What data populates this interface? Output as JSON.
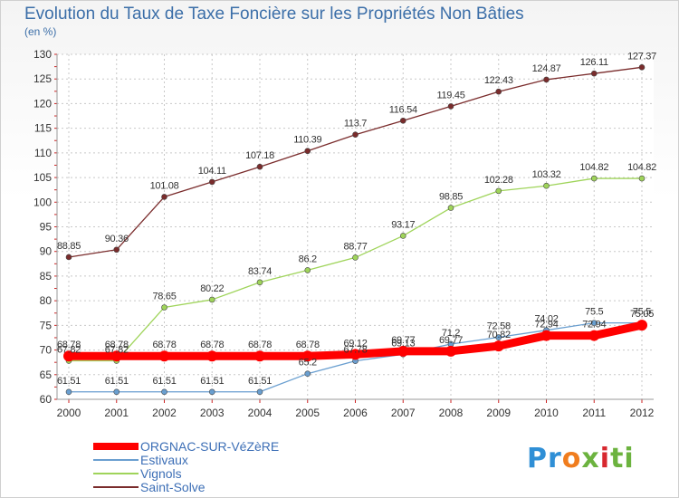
{
  "header": {
    "title": "Evolution du Taux de Taxe Foncière sur les Propriétés Non Bâties",
    "unit": "(en %)"
  },
  "chart_data": {
    "type": "line",
    "title": "Evolution du Taux de Taxe Foncière sur les Propriétés Non Bâties",
    "ylabel": "(en %)",
    "xlabel": "",
    "ylim": [
      60,
      130
    ],
    "yticks": [
      60,
      65,
      70,
      75,
      80,
      85,
      90,
      95,
      100,
      105,
      110,
      115,
      120,
      125,
      130
    ],
    "grid": true,
    "legend_position": "bottom-left",
    "x": [
      "2000",
      "2001",
      "2002",
      "2003",
      "2004",
      "2005",
      "2006",
      "2007",
      "2008",
      "2009",
      "2010",
      "2011",
      "2012"
    ],
    "series": [
      {
        "name": "ORGNAC-SUR-VéZèRE",
        "color": "#ff0000",
        "values": [
          68.78,
          68.78,
          68.78,
          68.78,
          68.78,
          68.78,
          69.12,
          69.77,
          69.77,
          70.82,
          72.94,
          72.94,
          75.05
        ],
        "labels": [
          "68.78",
          "68.78",
          "68.78",
          "68.78",
          "68.78",
          "68.78",
          "69.12",
          "69.77",
          "69.77",
          "70.82",
          "72.94",
          "72.94",
          "75.05"
        ]
      },
      {
        "name": "Estivaux",
        "color": "#6a9fd0",
        "values": [
          61.51,
          61.51,
          61.51,
          61.51,
          61.51,
          65.2,
          67.78,
          69.13,
          71.2,
          72.58,
          74.02,
          75.5,
          75.5
        ],
        "labels": [
          "61.51",
          "61.51",
          "61.51",
          "61.51",
          "61.51",
          "65.2",
          "67.78",
          "69.13",
          "71.2",
          "72.58",
          "74.02",
          "75.5",
          "75.5"
        ]
      },
      {
        "name": "Vignols",
        "color": "#9fd45a",
        "values": [
          67.82,
          67.82,
          78.65,
          80.22,
          83.74,
          86.2,
          88.77,
          93.17,
          98.85,
          102.28,
          103.32,
          104.82,
          104.82
        ],
        "labels": [
          "67.82",
          "67.82",
          "78.65",
          "80.22",
          "83.74",
          "86.2",
          "88.77",
          "93.17",
          "98.85",
          "102.28",
          "103.32",
          "104.82",
          "104.82"
        ]
      },
      {
        "name": "Saint-Solve",
        "color": "#7a2c2c",
        "values": [
          88.85,
          90.36,
          101.08,
          104.11,
          107.18,
          110.39,
          113.7,
          116.54,
          119.45,
          122.43,
          124.87,
          126.11,
          127.37
        ],
        "labels": [
          "88.85",
          "90.36",
          "101.08",
          "104.11",
          "107.18",
          "110.39",
          "113.7",
          "116.54",
          "119.45",
          "122.43",
          "124.87",
          "126.11",
          "127.37"
        ]
      }
    ]
  },
  "legend": {
    "items": [
      {
        "label": "ORGNAC-SUR-VéZèRE",
        "color": "#ff0000"
      },
      {
        "label": "Estivaux",
        "color": "#6a9fd0"
      },
      {
        "label": "Vignols",
        "color": "#9fd45a"
      },
      {
        "label": "Saint-Solve",
        "color": "#7a2c2c"
      }
    ]
  },
  "logo": {
    "part1": "Pr",
    "part2": "o",
    "part3": "x",
    "part4": "i",
    "part5": "ti"
  }
}
